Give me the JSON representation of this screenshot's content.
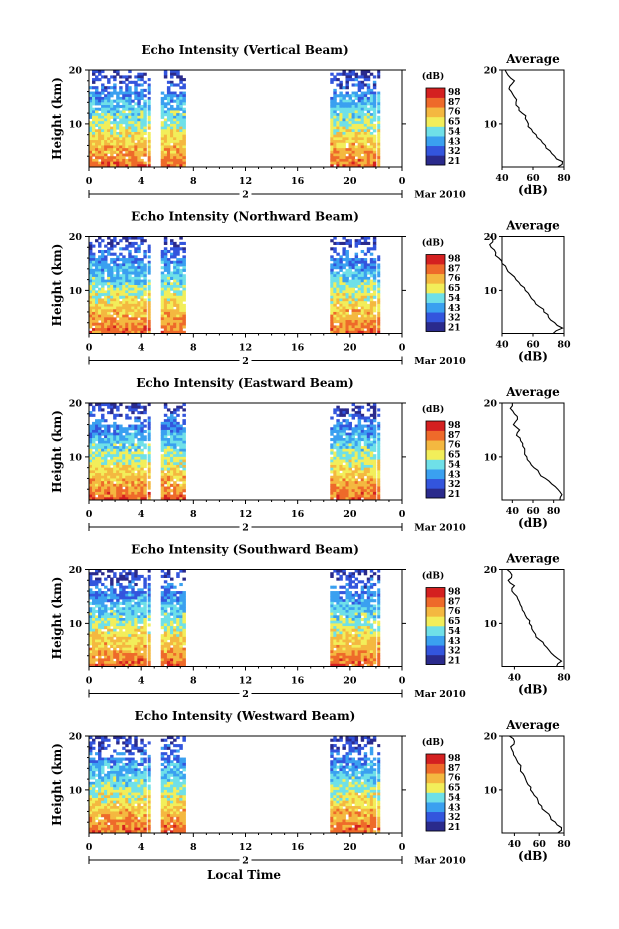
{
  "chart_data": [
    {
      "type": "heatmap",
      "title": "Echo Intensity (Vertical Beam)",
      "ylabel": "Height (km)",
      "yticks": [
        "20",
        "10"
      ],
      "xticks": [
        "0",
        "4",
        "8",
        "12",
        "16",
        "20",
        "0"
      ],
      "xlim": [
        0,
        24
      ],
      "ylim": [
        2,
        20
      ],
      "date_day": "2",
      "date_month": "Mar 2010",
      "data_segments": [
        [
          0,
          4.4
        ],
        [
          4.5,
          4.7
        ],
        [
          5.5,
          7.4
        ],
        [
          18.5,
          22.0
        ],
        [
          22.1,
          22.3
        ]
      ],
      "colorbar_unit": "(dB)",
      "colorbar_ticks": [
        "98",
        "87",
        "76",
        "65",
        "54",
        "43",
        "32",
        "21"
      ],
      "avg_title": "Average",
      "avg_xlabel": "(dB)",
      "avg_xticks": [
        "40",
        "60",
        "80"
      ],
      "avg_xlim": [
        40,
        80
      ],
      "avg_yticks": [
        "20",
        "10"
      ],
      "avg_profile": {
        "height": [
          20,
          19,
          18,
          17,
          16,
          15,
          14,
          13,
          12,
          11,
          10,
          9,
          8,
          7,
          6,
          5,
          4,
          3,
          2
        ],
        "db": [
          42,
          44,
          48,
          45,
          46,
          48,
          49,
          51,
          53,
          55,
          57,
          59,
          62,
          65,
          68,
          71,
          74,
          79,
          76
        ]
      }
    },
    {
      "type": "heatmap",
      "title": "Echo Intensity (Northward Beam)",
      "ylabel": "Height (km)",
      "yticks": [
        "20",
        "10"
      ],
      "xticks": [
        "0",
        "4",
        "8",
        "12",
        "16",
        "20",
        "0"
      ],
      "xlim": [
        0,
        24
      ],
      "ylim": [
        2,
        20
      ],
      "date_day": "2",
      "date_month": "Mar 2010",
      "data_segments": [
        [
          0,
          4.4
        ],
        [
          4.5,
          4.7
        ],
        [
          5.5,
          7.4
        ],
        [
          18.5,
          22.0
        ],
        [
          22.1,
          22.3
        ]
      ],
      "colorbar_unit": "(dB)",
      "colorbar_ticks": [
        "98",
        "87",
        "76",
        "65",
        "54",
        "43",
        "32",
        "21"
      ],
      "avg_title": "Average",
      "avg_xlabel": "(dB)",
      "avg_xticks": [
        "40",
        "60",
        "80"
      ],
      "avg_xlim": [
        40,
        80
      ],
      "avg_yticks": [
        "20",
        "10"
      ],
      "avg_profile": {
        "height": [
          20,
          19,
          18,
          17,
          16,
          15,
          14,
          13,
          12,
          11,
          10,
          9,
          8,
          7,
          6,
          5,
          4,
          3,
          2
        ],
        "db": [
          32,
          34,
          33,
          36,
          38,
          40,
          43,
          46,
          49,
          52,
          55,
          58,
          61,
          64,
          67,
          70,
          74,
          79,
          73
        ]
      }
    },
    {
      "type": "heatmap",
      "title": "Echo Intensity (Eastward Beam)",
      "ylabel": "Height (km)",
      "yticks": [
        "20",
        "10"
      ],
      "xticks": [
        "0",
        "4",
        "8",
        "12",
        "16",
        "20",
        "0"
      ],
      "xlim": [
        0,
        24
      ],
      "ylim": [
        2,
        20
      ],
      "date_day": "2",
      "date_month": "Mar 2010",
      "data_segments": [
        [
          0,
          4.4
        ],
        [
          4.5,
          4.7
        ],
        [
          5.5,
          7.4
        ],
        [
          18.5,
          22.0
        ],
        [
          22.1,
          22.3
        ]
      ],
      "colorbar_unit": "(dB)",
      "colorbar_ticks": [
        "98",
        "87",
        "76",
        "65",
        "54",
        "43",
        "32",
        "21"
      ],
      "avg_title": "Average",
      "avg_xlabel": "(dB)",
      "avg_xticks": [
        "40",
        "60",
        "80"
      ],
      "avg_xlim": [
        30,
        90
      ],
      "avg_yticks": [
        "20",
        "10"
      ],
      "avg_profile": {
        "height": [
          20,
          19,
          18,
          17,
          16,
          15,
          14,
          13,
          12,
          11,
          10,
          9,
          8,
          7,
          6,
          5,
          4,
          3,
          2
        ],
        "db": [
          40,
          38,
          42,
          45,
          41,
          47,
          44,
          48,
          50,
          52,
          54,
          57,
          61,
          66,
          72,
          78,
          84,
          88,
          86
        ]
      }
    },
    {
      "type": "heatmap",
      "title": "Echo Intensity (Southward Beam)",
      "ylabel": "Height (km)",
      "yticks": [
        "20",
        "10"
      ],
      "xticks": [
        "0",
        "4",
        "8",
        "12",
        "16",
        "20",
        "0"
      ],
      "xlim": [
        0,
        24
      ],
      "ylim": [
        2,
        20
      ],
      "date_day": "2",
      "date_month": "Mar 2010",
      "data_segments": [
        [
          0,
          4.4
        ],
        [
          4.5,
          4.7
        ],
        [
          5.5,
          7.4
        ],
        [
          18.5,
          22.0
        ],
        [
          22.1,
          22.3
        ]
      ],
      "colorbar_unit": "(dB)",
      "colorbar_ticks": [
        "98",
        "87",
        "76",
        "65",
        "54",
        "43",
        "32",
        "21"
      ],
      "avg_title": "Average",
      "avg_xlabel": "(dB)",
      "avg_xticks": [
        "40",
        "80"
      ],
      "avg_xlim": [
        30,
        80
      ],
      "avg_yticks": [
        "20",
        "10"
      ],
      "avg_profile": {
        "height": [
          20,
          19,
          18,
          17,
          16,
          15,
          14,
          13,
          12,
          11,
          10,
          9,
          8,
          7,
          6,
          5,
          4,
          3,
          2
        ],
        "db": [
          34,
          38,
          35,
          40,
          38,
          42,
          44,
          46,
          48,
          50,
          52,
          54,
          57,
          60,
          64,
          68,
          72,
          78,
          74
        ]
      }
    },
    {
      "type": "heatmap",
      "title": "Echo Intensity (Westward Beam)",
      "ylabel": "Height (km)",
      "yticks": [
        "20",
        "10"
      ],
      "xticks": [
        "0",
        "4",
        "8",
        "12",
        "16",
        "20",
        "0"
      ],
      "xlim": [
        0,
        24
      ],
      "ylim": [
        2,
        20
      ],
      "date_day": "2",
      "date_month": "Mar 2010",
      "data_segments": [
        [
          0,
          4.4
        ],
        [
          4.5,
          4.7
        ],
        [
          5.5,
          7.4
        ],
        [
          18.5,
          22.0
        ],
        [
          22.1,
          22.3
        ]
      ],
      "colorbar_unit": "(dB)",
      "colorbar_ticks": [
        "98",
        "87",
        "76",
        "65",
        "54",
        "43",
        "32",
        "21"
      ],
      "avg_title": "Average",
      "avg_xlabel": "(dB)",
      "avg_xticks": [
        "40",
        "60",
        "80"
      ],
      "avg_xlim": [
        30,
        80
      ],
      "avg_yticks": [
        "20",
        "10"
      ],
      "avg_profile": {
        "height": [
          20,
          19,
          18,
          17,
          16,
          15,
          14,
          13,
          12,
          11,
          10,
          9,
          8,
          7,
          6,
          5,
          4,
          3,
          2
        ],
        "db": [
          36,
          40,
          37,
          39,
          41,
          43,
          45,
          47,
          49,
          51,
          53,
          56,
          59,
          62,
          65,
          69,
          73,
          78,
          75
        ]
      }
    }
  ],
  "xlabel": "Local Time",
  "colormap": [
    "#2a2a8c",
    "#3355dd",
    "#3aa0f0",
    "#6fe0e8",
    "#f2ee5a",
    "#f4b840",
    "#ee6a2a",
    "#d42020"
  ]
}
